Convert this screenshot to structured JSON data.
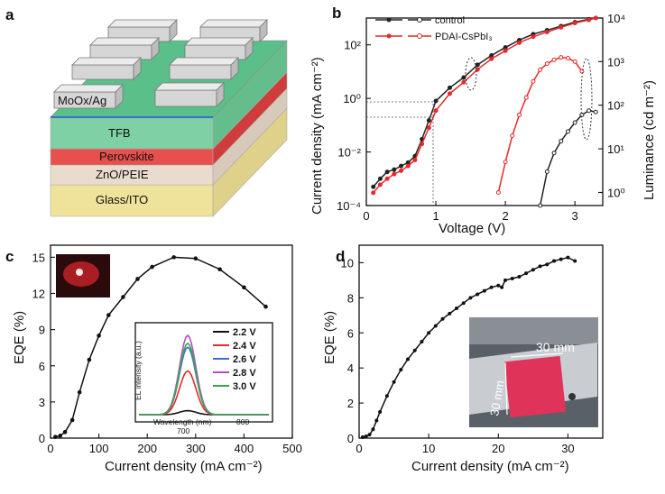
{
  "panels": {
    "a": "a",
    "b": "b",
    "c": "c",
    "d": "d"
  },
  "device": {
    "electrode_label": "MoOx/Ag",
    "layers": [
      {
        "name": "TFB",
        "color": "#7fd0a4"
      },
      {
        "name": "Perovskite",
        "color": "#e8504f"
      },
      {
        "name": "ZnO/PEIE",
        "color": "#eadccd"
      },
      {
        "name": "Glass/ITO",
        "color": "#efe39c"
      }
    ],
    "top_layer_color": "#5bbf8a",
    "electrode_color": "#cfcfcf"
  },
  "chart_data": [
    {
      "type": "line",
      "panel": "b",
      "xlabel": "Voltage (V)",
      "ylabel": "Current density (mA cm⁻²)",
      "y2label": "Luminance (cd m⁻²)",
      "xlim": [
        0,
        3.4
      ],
      "ylim": [
        0.0001,
        1000
      ],
      "y2lim": [
        0.5,
        10000
      ],
      "yscale": "log",
      "y2scale": "log",
      "xticks": [
        "0",
        "1",
        "2",
        "3"
      ],
      "yticks": [
        "10⁻⁴",
        "10⁻²",
        "10⁰",
        "10²"
      ],
      "y2ticks": [
        "10⁰",
        "10¹",
        "10²",
        "10³",
        "10⁴"
      ],
      "legend": [
        "control",
        "PDAI-CsPbI₃"
      ],
      "colors": {
        "control": "#222222",
        "pdai": "#e8282a"
      },
      "series": [
        {
          "name": "control",
          "axis": "y",
          "x": [
            0.1,
            0.2,
            0.3,
            0.4,
            0.5,
            0.6,
            0.7,
            0.8,
            0.9,
            1.0,
            1.2,
            1.4,
            1.6,
            1.8,
            2.0,
            2.2,
            2.4,
            2.6,
            2.8,
            3.0,
            3.2,
            3.3
          ],
          "y": [
            0.0005,
            0.001,
            0.0018,
            0.0022,
            0.003,
            0.004,
            0.007,
            0.03,
            0.15,
            0.8,
            2.5,
            6,
            18,
            40,
            80,
            150,
            250,
            350,
            500,
            700,
            900,
            1000
          ]
        },
        {
          "name": "PDAI-CsPbI₃",
          "axis": "y",
          "x": [
            0.1,
            0.2,
            0.3,
            0.4,
            0.5,
            0.6,
            0.7,
            0.8,
            0.9,
            1.0,
            1.2,
            1.4,
            1.6,
            1.8,
            2.0,
            2.2,
            2.4,
            2.6,
            2.8,
            3.0,
            3.2,
            3.3
          ],
          "y": [
            0.0003,
            0.0006,
            0.001,
            0.0015,
            0.002,
            0.003,
            0.005,
            0.02,
            0.08,
            0.35,
            1.5,
            4,
            12,
            30,
            60,
            120,
            200,
            300,
            450,
            650,
            850,
            1000
          ]
        },
        {
          "name": "control luminance",
          "axis": "y2",
          "x": [
            2.5,
            2.6,
            2.7,
            2.8,
            2.9,
            3.0,
            3.1,
            3.2,
            3.3
          ],
          "y": [
            0.5,
            3,
            8,
            15,
            25,
            40,
            60,
            75,
            70
          ]
        },
        {
          "name": "PDAI luminance",
          "axis": "y2",
          "x": [
            1.9,
            2.0,
            2.1,
            2.2,
            2.3,
            2.4,
            2.5,
            2.6,
            2.7,
            2.8,
            2.9,
            3.0,
            3.1
          ],
          "y": [
            1,
            5,
            20,
            60,
            150,
            350,
            650,
            900,
            1100,
            1250,
            1200,
            1000,
            600
          ]
        }
      ]
    },
    {
      "type": "line",
      "panel": "c",
      "xlabel": "Current density (mA cm⁻²)",
      "ylabel": "EQE (%)",
      "xlim": [
        0,
        500
      ],
      "ylim": [
        0,
        16
      ],
      "xticks": [
        "0",
        "100",
        "200",
        "300",
        "400",
        "500"
      ],
      "yticks": [
        "0",
        "3",
        "6",
        "9",
        "12",
        "15"
      ],
      "series": [
        {
          "name": "",
          "x": [
            10,
            20,
            30,
            45,
            60,
            80,
            100,
            120,
            150,
            180,
            210,
            255,
            300,
            350,
            400,
            445
          ],
          "y": [
            0.1,
            0.2,
            0.5,
            1.5,
            3.8,
            6.5,
            8.5,
            10.2,
            11.7,
            13.2,
            14.2,
            15.0,
            14.9,
            14.0,
            12.5,
            10.9
          ]
        }
      ],
      "inset": {
        "type": "line",
        "xlabel": "Wavelength (nm)",
        "ylabel": "EL intensity (a.u.)",
        "xticks": [
          "700",
          "800"
        ],
        "legend": [
          "2.2 V",
          "2.4 V",
          "2.6 V",
          "2.8 V",
          "3.0 V"
        ],
        "colors": [
          "#111111",
          "#e8282a",
          "#3a6fd8",
          "#b24fc0",
          "#3aa84a"
        ],
        "peaks": [
          0.05,
          0.55,
          0.85,
          1.0,
          0.9
        ]
      }
    },
    {
      "type": "line",
      "panel": "d",
      "xlabel": "Current density (mA cm⁻²)",
      "ylabel": "EQE (%)",
      "xlim": [
        0,
        35
      ],
      "ylim": [
        0,
        11
      ],
      "xticks": [
        "0",
        "10",
        "20",
        "30"
      ],
      "yticks": [
        "0",
        "2",
        "4",
        "6",
        "8",
        "10"
      ],
      "series": [
        {
          "name": "",
          "x": [
            0.5,
            1,
            1.5,
            2,
            2.5,
            3,
            4,
            5,
            6,
            7,
            8,
            9,
            10,
            11,
            12,
            13,
            14,
            15,
            16,
            17,
            18,
            19,
            20,
            20.5,
            21,
            22,
            23,
            24,
            25,
            26,
            27,
            28,
            29,
            30,
            31
          ],
          "y": [
            0.05,
            0.1,
            0.2,
            0.5,
            1.0,
            1.5,
            2.4,
            3.2,
            3.9,
            4.5,
            5.0,
            5.5,
            6.0,
            6.4,
            6.8,
            7.1,
            7.4,
            7.7,
            8.0,
            8.2,
            8.4,
            8.6,
            8.7,
            8.6,
            9.0,
            9.1,
            9.2,
            9.4,
            9.6,
            9.8,
            9.9,
            10.1,
            10.2,
            10.3,
            10.1
          ]
        }
      ],
      "photo_labels": [
        "30 mm",
        "30 mm"
      ]
    }
  ]
}
